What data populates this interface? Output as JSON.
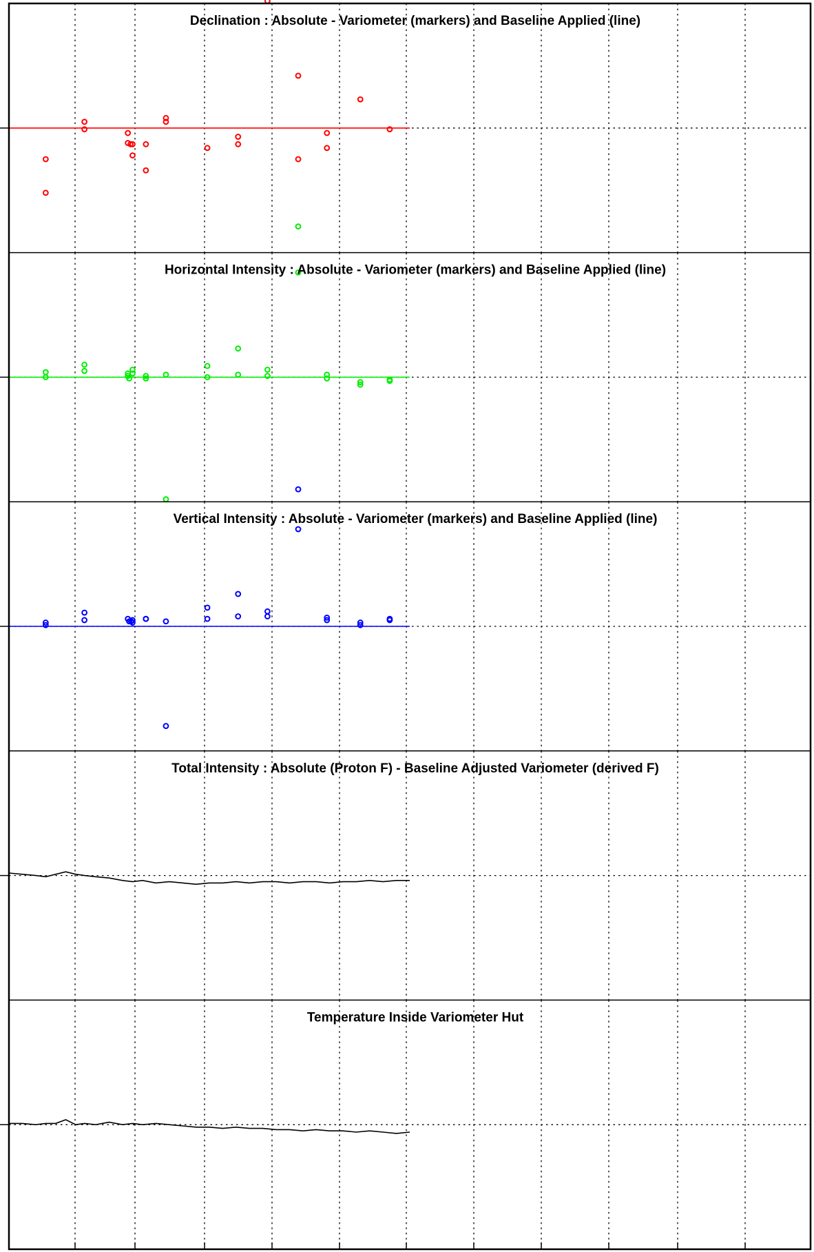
{
  "chart_data": [
    {
      "type": "scatter",
      "title": "Declination : Absolute - Variometer (markers) and Baseline Applied (line)",
      "grid": true,
      "xlim": [
        0,
        12
      ],
      "ylim": [
        -1,
        1
      ],
      "marker_color": "#ff0000",
      "line_color": "#ff0000",
      "baseline_value": 0,
      "line_extent": [
        0,
        6
      ],
      "points": [
        {
          "x": 0.55,
          "y": -0.25
        },
        {
          "x": 0.55,
          "y": -0.52
        },
        {
          "x": 1.13,
          "y": 0.05
        },
        {
          "x": 1.13,
          "y": -0.01
        },
        {
          "x": 1.78,
          "y": -0.04
        },
        {
          "x": 1.78,
          "y": -0.12
        },
        {
          "x": 1.82,
          "y": -0.13
        },
        {
          "x": 1.85,
          "y": -0.13
        },
        {
          "x": 1.85,
          "y": -0.22
        },
        {
          "x": 2.05,
          "y": -0.13
        },
        {
          "x": 2.05,
          "y": -0.34
        },
        {
          "x": 2.35,
          "y": 0.08
        },
        {
          "x": 2.35,
          "y": 0.05
        },
        {
          "x": 2.97,
          "y": -0.16
        },
        {
          "x": 3.43,
          "y": -0.07
        },
        {
          "x": 3.43,
          "y": -0.13
        },
        {
          "x": 3.87,
          "y": 1.02
        },
        {
          "x": 4.33,
          "y": 0.42
        },
        {
          "x": 4.33,
          "y": -0.25
        },
        {
          "x": 4.76,
          "y": -0.04
        },
        {
          "x": 4.76,
          "y": -0.16
        },
        {
          "x": 5.26,
          "y": 0.23
        },
        {
          "x": 5.7,
          "y": -0.01
        }
      ],
      "secondary_points": [
        {
          "x": 4.33,
          "y": -0.79,
          "color": "#00ee00"
        }
      ]
    },
    {
      "type": "scatter",
      "title": "Horizontal Intensity : Absolute - Variometer (markers) and Baseline Applied (line)",
      "grid": true,
      "xlim": [
        0,
        12
      ],
      "ylim": [
        -1,
        1
      ],
      "marker_color": "#00ee00",
      "line_color": "#00ee00",
      "baseline_value": 0,
      "line_extent": [
        0,
        6
      ],
      "points": [
        {
          "x": 0.55,
          "y": 0.04
        },
        {
          "x": 0.55,
          "y": 0.0
        },
        {
          "x": 1.13,
          "y": 0.1
        },
        {
          "x": 1.13,
          "y": 0.05
        },
        {
          "x": 1.78,
          "y": 0.03
        },
        {
          "x": 1.78,
          "y": 0.01
        },
        {
          "x": 1.8,
          "y": -0.01
        },
        {
          "x": 1.85,
          "y": 0.06
        },
        {
          "x": 1.85,
          "y": 0.03
        },
        {
          "x": 2.05,
          "y": 0.01
        },
        {
          "x": 2.05,
          "y": -0.01
        },
        {
          "x": 2.35,
          "y": 0.02
        },
        {
          "x": 2.35,
          "y": -0.98
        },
        {
          "x": 2.97,
          "y": 0.09
        },
        {
          "x": 2.97,
          "y": 0.0
        },
        {
          "x": 3.43,
          "y": 0.23
        },
        {
          "x": 3.43,
          "y": 0.02
        },
        {
          "x": 3.87,
          "y": 0.06
        },
        {
          "x": 3.87,
          "y": 0.01
        },
        {
          "x": 4.33,
          "y": 0.84
        },
        {
          "x": 4.76,
          "y": 0.02
        },
        {
          "x": 4.76,
          "y": -0.01
        },
        {
          "x": 5.26,
          "y": -0.04
        },
        {
          "x": 5.26,
          "y": -0.06
        },
        {
          "x": 5.7,
          "y": -0.02
        },
        {
          "x": 5.7,
          "y": -0.03
        }
      ],
      "secondary_points": [
        {
          "x": 4.33,
          "y": -0.9,
          "color": "#0000ff"
        }
      ]
    },
    {
      "type": "scatter",
      "title": "Vertical Intensity : Absolute - Variometer (markers) and Baseline Applied (line)",
      "grid": true,
      "xlim": [
        0,
        12
      ],
      "ylim": [
        -1,
        1
      ],
      "marker_color": "#0000ff",
      "line_color": "#0000ff",
      "baseline_value": 0,
      "line_extent": [
        0,
        6
      ],
      "points": [
        {
          "x": 0.55,
          "y": 0.03
        },
        {
          "x": 0.55,
          "y": 0.01
        },
        {
          "x": 1.13,
          "y": 0.11
        },
        {
          "x": 1.13,
          "y": 0.05
        },
        {
          "x": 1.78,
          "y": 0.06
        },
        {
          "x": 1.8,
          "y": 0.04
        },
        {
          "x": 1.83,
          "y": 0.04
        },
        {
          "x": 1.85,
          "y": 0.05
        },
        {
          "x": 1.85,
          "y": 0.03
        },
        {
          "x": 2.05,
          "y": 0.06
        },
        {
          "x": 2.05,
          "y": 0.06
        },
        {
          "x": 2.35,
          "y": 0.04
        },
        {
          "x": 2.35,
          "y": -0.8
        },
        {
          "x": 2.97,
          "y": 0.15
        },
        {
          "x": 2.97,
          "y": 0.06
        },
        {
          "x": 3.43,
          "y": 0.26
        },
        {
          "x": 3.43,
          "y": 0.08
        },
        {
          "x": 3.87,
          "y": 0.12
        },
        {
          "x": 3.87,
          "y": 0.08
        },
        {
          "x": 4.33,
          "y": 0.78
        },
        {
          "x": 4.76,
          "y": 0.07
        },
        {
          "x": 4.76,
          "y": 0.05
        },
        {
          "x": 5.26,
          "y": 0.03
        },
        {
          "x": 5.26,
          "y": 0.01
        },
        {
          "x": 5.7,
          "y": 0.06
        },
        {
          "x": 5.7,
          "y": 0.05
        }
      ]
    },
    {
      "type": "line",
      "title": "Total Intensity : Absolute (Proton F) - Baseline Adjusted Variometer (derived F)",
      "grid": true,
      "xlim": [
        0,
        12
      ],
      "ylim": [
        -1,
        1
      ],
      "line_color": "#000000",
      "x": [
        0,
        0.2,
        0.4,
        0.55,
        0.7,
        0.85,
        1.0,
        1.13,
        1.3,
        1.5,
        1.7,
        1.85,
        2.0,
        2.2,
        2.4,
        2.6,
        2.8,
        3.0,
        3.2,
        3.4,
        3.6,
        3.8,
        4.0,
        4.2,
        4.4,
        4.6,
        4.8,
        5.0,
        5.2,
        5.4,
        5.6,
        5.8,
        6.0
      ],
      "y": [
        0.02,
        0.01,
        0.0,
        -0.01,
        0.01,
        0.03,
        0.01,
        0.0,
        -0.01,
        -0.02,
        -0.04,
        -0.05,
        -0.04,
        -0.06,
        -0.05,
        -0.06,
        -0.07,
        -0.06,
        -0.06,
        -0.05,
        -0.06,
        -0.05,
        -0.05,
        -0.06,
        -0.05,
        -0.05,
        -0.06,
        -0.05,
        -0.05,
        -0.04,
        -0.05,
        -0.04,
        -0.04
      ]
    },
    {
      "type": "line",
      "title": "Temperature Inside Variometer Hut",
      "grid": true,
      "xlim": [
        0,
        12
      ],
      "ylim": [
        -1,
        1
      ],
      "line_color": "#000000",
      "x": [
        0,
        0.2,
        0.4,
        0.55,
        0.7,
        0.85,
        1.0,
        1.13,
        1.3,
        1.5,
        1.7,
        1.85,
        2.0,
        2.2,
        2.4,
        2.6,
        2.8,
        3.0,
        3.2,
        3.4,
        3.6,
        3.8,
        4.0,
        4.2,
        4.4,
        4.6,
        4.8,
        5.0,
        5.2,
        5.4,
        5.6,
        5.8,
        6.0
      ],
      "y": [
        0.01,
        0.01,
        0.0,
        0.01,
        0.01,
        0.04,
        0.0,
        0.01,
        0.0,
        0.02,
        0.0,
        0.01,
        0.0,
        0.01,
        0.0,
        -0.01,
        -0.02,
        -0.02,
        -0.03,
        -0.02,
        -0.03,
        -0.03,
        -0.04,
        -0.04,
        -0.05,
        -0.04,
        -0.05,
        -0.05,
        -0.06,
        -0.05,
        -0.06,
        -0.07,
        -0.06
      ]
    }
  ]
}
